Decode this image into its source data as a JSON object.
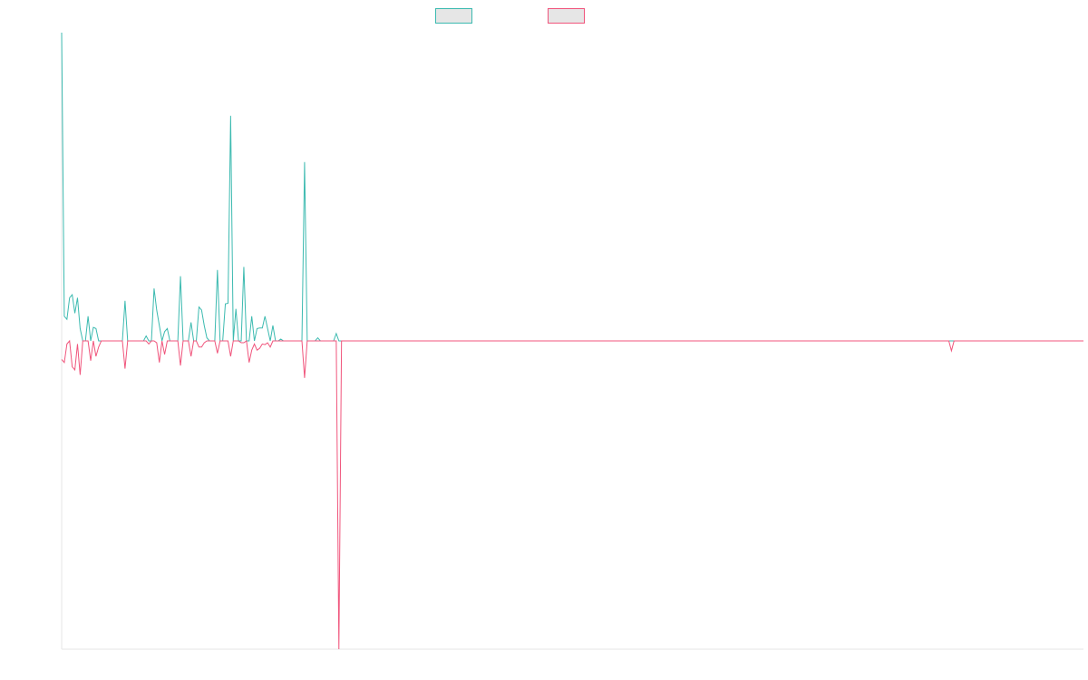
{
  "chart_data": {
    "type": "line",
    "title": "",
    "xlabel": "",
    "ylabel": "",
    "grid": false,
    "legend_placement": "top-center",
    "ylim": [
      -50,
      50
    ],
    "series": [
      {
        "color": "#3cbab0",
        "values": [
          50,
          4,
          3.5,
          7,
          7.5,
          4.5,
          7,
          2,
          0,
          0,
          4,
          0,
          2.2,
          2,
          0,
          0,
          0,
          0,
          0,
          0,
          0,
          0,
          0,
          0,
          6.5,
          0,
          0,
          0,
          0,
          0,
          0,
          0,
          0.8,
          0,
          0,
          8.5,
          5,
          2.5,
          0,
          1.5,
          2,
          0,
          0,
          0,
          0,
          10.5,
          0,
          0,
          0,
          3,
          0,
          0,
          5.5,
          5,
          2.5,
          0.5,
          0,
          0,
          0,
          11.5,
          0,
          0,
          6,
          6.1,
          36.5,
          0,
          5.2,
          0,
          0,
          12,
          0,
          0,
          4,
          0,
          2,
          2.1,
          2.1,
          4,
          2,
          0,
          2.5,
          0,
          0,
          0.3,
          0,
          0,
          0,
          0,
          0,
          0,
          0,
          0,
          29,
          0,
          0,
          0,
          0,
          0.5,
          0,
          0,
          0,
          0,
          0,
          0,
          1.2,
          0
        ]
      },
      {
        "color": "#f0557c",
        "values": [
          -3,
          -3.5,
          -0.5,
          0,
          -4.2,
          -4.7,
          -0.5,
          -5.5,
          0,
          0,
          0,
          -3.2,
          0,
          -2.5,
          -1,
          0,
          0,
          0,
          0,
          0,
          0,
          0,
          0,
          0,
          -4.5,
          0,
          0,
          0,
          0,
          0,
          0,
          0,
          0,
          -0.5,
          0,
          0,
          -0.3,
          -3.5,
          0,
          -2.2,
          0,
          0,
          0,
          0,
          0,
          -4,
          0,
          0,
          0,
          -2.5,
          0,
          0,
          -1,
          -1,
          -0.3,
          0,
          0,
          0,
          0,
          -2,
          0,
          0,
          0,
          0,
          -2.5,
          0,
          0,
          0,
          -0.3,
          -0.3,
          0,
          -3.5,
          -1.5,
          -0.5,
          -1.5,
          -1.2,
          -0.5,
          -0.6,
          -0.3,
          -1,
          0,
          0,
          0,
          0,
          0,
          0,
          0,
          0,
          0,
          0,
          0,
          0,
          -6,
          0,
          0,
          0,
          0,
          0,
          0,
          0,
          0,
          0,
          0,
          0,
          0,
          -50
        ]
      }
    ],
    "x_count": 388,
    "tail_marks": [
      {
        "series": 1,
        "index": 337,
        "value": -1.6
      }
    ]
  }
}
